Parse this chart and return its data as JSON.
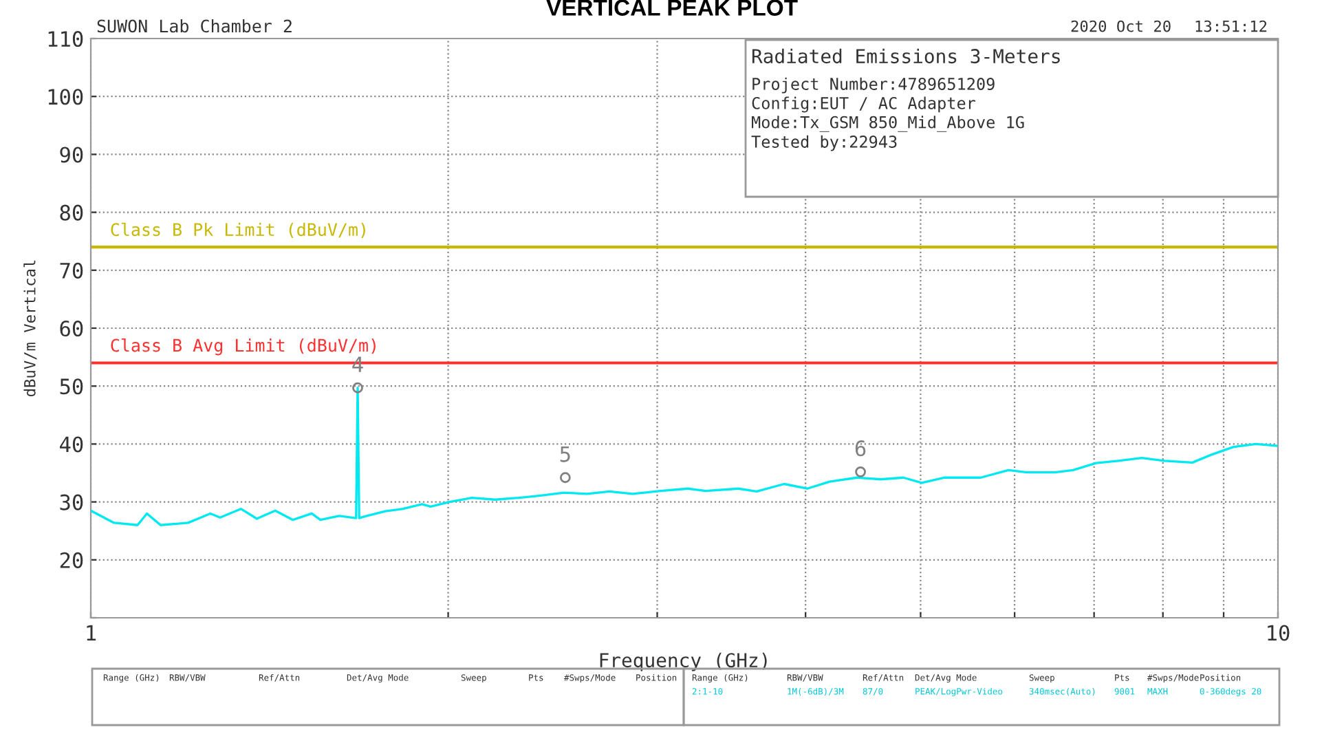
{
  "chart_data": {
    "type": "line",
    "title": "VERTICAL PEAK PLOT",
    "xlabel": "Frequency (GHz)",
    "ylabel": "dBuV/m Vertical",
    "log": "x",
    "xlim": [
      1,
      10
    ],
    "ylim": [
      10,
      110
    ],
    "xticks": [
      1,
      {
        "value": 2,
        "label": null
      },
      {
        "value": 3,
        "label": null
      },
      {
        "value": 4,
        "label": null
      },
      {
        "value": 5,
        "label": null
      },
      {
        "value": 6,
        "label": null
      },
      {
        "value": 7,
        "label": null
      },
      {
        "value": 8,
        "label": null
      },
      {
        "value": 9,
        "label": null
      },
      10
    ],
    "yticks": [
      {
        "value": 10,
        "label": null
      },
      20,
      30,
      40,
      50,
      60,
      70,
      80,
      90,
      100,
      110
    ],
    "grid": true,
    "series": [
      {
        "color": "#00e8f0",
        "marker": "none",
        "line_style": "solid",
        "x": [
          1.002,
          1.046,
          1.095,
          1.115,
          1.145,
          1.208,
          1.261,
          1.285,
          1.338,
          1.38,
          1.43,
          1.48,
          1.535,
          1.561,
          1.619,
          1.673,
          1.678,
          1.683,
          1.708,
          1.77,
          1.832,
          1.901,
          1.933,
          2.005,
          2.094,
          2.191,
          2.291,
          2.392,
          2.504,
          2.618,
          2.734,
          2.861,
          3.018,
          3.184,
          3.296,
          3.511,
          3.638,
          3.837,
          4.013,
          4.191,
          4.42,
          4.626,
          4.836,
          5.011,
          5.239,
          5.619,
          5.928,
          6.149,
          6.486,
          6.72,
          7.026,
          7.338,
          7.678,
          8.027,
          8.47,
          8.776,
          9.176,
          9.583,
          9.97
        ],
        "values": [
          28.4,
          26.4,
          26.0,
          28.0,
          26.0,
          26.4,
          28.0,
          27.3,
          28.8,
          27.1,
          28.5,
          26.9,
          28.0,
          26.9,
          27.6,
          27.2,
          49.7,
          27.2,
          27.6,
          28.4,
          28.8,
          29.6,
          29.2,
          30.0,
          30.7,
          30.4,
          30.7,
          31.1,
          31.6,
          31.4,
          31.8,
          31.4,
          31.9,
          32.3,
          31.9,
          32.3,
          31.8,
          33.1,
          32.3,
          33.5,
          34.2,
          33.9,
          34.2,
          33.3,
          34.2,
          34.2,
          35.5,
          35.1,
          35.1,
          35.5,
          36.7,
          37.1,
          37.6,
          37.1,
          36.8,
          38.1,
          39.5,
          40.0,
          39.7
        ]
      },
      {
        "type": "scatter",
        "color": "#808080",
        "marker": "circle",
        "x": [
          1.678,
          2.51,
          4.45
        ],
        "values": [
          49.7,
          34.2,
          35.2
        ]
      }
    ],
    "ref_lines": [
      {
        "axis": "y",
        "value": 74,
        "label": "Class B Pk Limit (dBuV/m)",
        "color": "#c8b800"
      },
      {
        "axis": "y",
        "value": 54,
        "label": "Class B Avg Limit (dBuV/m)",
        "color": "#ff3030"
      }
    ],
    "annotations": [
      "SUWON Lab Chamber 2",
      "2020 Oct 20",
      "13:51:12",
      "Radiated Emissions 3-Meters",
      "Project Number:4789651209",
      "Config:EUT / AC Adapter",
      "Mode:Tx_GSM 850_Mid_Above 1G",
      "Tested by:22943",
      "Range (GHz)",
      "RBW/VBW",
      "Ref/Attn",
      "Det/Avg Mode",
      "Sweep",
      "Pts",
      "#Swps/Mode",
      "Position",
      "Range (GHz)",
      "RBW/VBW",
      "Ref/Attn",
      "Det/Avg Mode",
      "Sweep",
      "Pts",
      "#Swps/Mode",
      "Position",
      "2:1-10",
      "1M(-6dB)/3M",
      "87/0",
      "PEAK/LogPwr-Video",
      "340msec(Auto)",
      "9001",
      "MAXH",
      "0-360degs 20",
      {
        "text": "4",
        "x": 1.678,
        "y": 49.7
      },
      {
        "text": "5",
        "x": 2.51,
        "y": 34.2
      },
      {
        "text": "6",
        "x": 4.45,
        "y": 35.2
      }
    ]
  }
}
